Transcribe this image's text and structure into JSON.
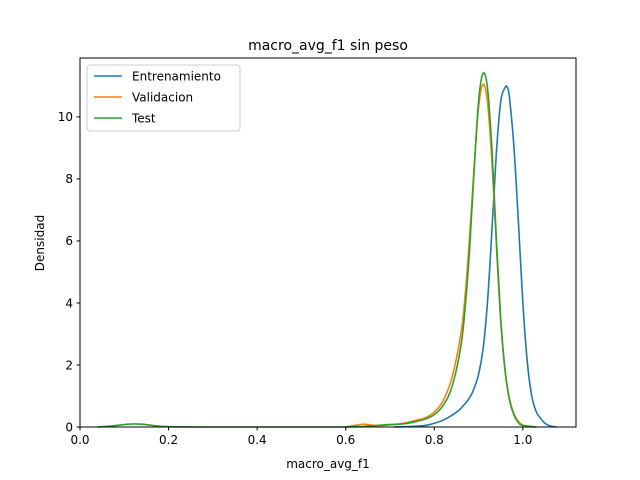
{
  "chart_data": {
    "type": "line",
    "title": "macro_avg_f1 sin peso",
    "xlabel": "macro_avg_f1",
    "ylabel": "Densidad",
    "xlim": [
      0.0,
      1.12
    ],
    "ylim": [
      0,
      11.9
    ],
    "xticks": [
      0.0,
      0.2,
      0.4,
      0.6,
      0.8,
      1.0
    ],
    "xtick_labels": [
      "0.0",
      "0.2",
      "0.4",
      "0.6",
      "0.8",
      "1.0"
    ],
    "yticks": [
      0,
      2,
      4,
      6,
      8,
      10
    ],
    "ytick_labels": [
      "0",
      "2",
      "4",
      "6",
      "8",
      "10"
    ],
    "grid": false,
    "legend": "upper left",
    "series": [
      {
        "name": "Entrenamiento",
        "color": "#1f77b4",
        "x": [
          0.71,
          0.75,
          0.78,
          0.8,
          0.82,
          0.84,
          0.86,
          0.88,
          0.89,
          0.9,
          0.91,
          0.92,
          0.93,
          0.94,
          0.95,
          0.96,
          0.965,
          0.97,
          0.98,
          0.99,
          1.0,
          1.01,
          1.02,
          1.03,
          1.04,
          1.05,
          1.06,
          1.075
        ],
        "y": [
          0.0,
          0.02,
          0.05,
          0.12,
          0.22,
          0.38,
          0.6,
          0.95,
          1.25,
          1.7,
          2.5,
          4.0,
          6.3,
          8.8,
          10.5,
          10.95,
          10.95,
          10.6,
          9.0,
          6.6,
          4.0,
          2.1,
          1.0,
          0.5,
          0.28,
          0.12,
          0.04,
          0.0
        ]
      },
      {
        "name": "Validacion",
        "color": "#ff7f0e",
        "x": [
          0.6,
          0.62,
          0.64,
          0.66,
          0.68,
          0.7,
          0.72,
          0.74,
          0.76,
          0.78,
          0.8,
          0.82,
          0.84,
          0.86,
          0.87,
          0.88,
          0.89,
          0.9,
          0.91,
          0.92,
          0.93,
          0.94,
          0.95,
          0.96,
          0.97,
          0.98,
          0.99,
          1.0,
          1.02
        ],
        "y": [
          0.0,
          0.05,
          0.09,
          0.06,
          0.05,
          0.07,
          0.1,
          0.15,
          0.22,
          0.3,
          0.48,
          0.85,
          1.6,
          3.0,
          4.3,
          6.2,
          8.4,
          10.3,
          11.05,
          10.5,
          8.6,
          5.9,
          3.4,
          1.8,
          0.9,
          0.42,
          0.18,
          0.06,
          0.0
        ]
      },
      {
        "name": "Test",
        "color": "#2ca02c",
        "x": [
          0.04,
          0.07,
          0.1,
          0.12,
          0.14,
          0.17,
          0.2,
          0.3,
          0.4,
          0.5,
          0.6,
          0.64,
          0.68,
          0.7,
          0.72,
          0.74,
          0.76,
          0.78,
          0.8,
          0.82,
          0.84,
          0.86,
          0.87,
          0.88,
          0.89,
          0.9,
          0.91,
          0.92,
          0.93,
          0.94,
          0.95,
          0.96,
          0.97,
          0.98,
          0.99,
          1.0,
          1.03
        ],
        "y": [
          0.0,
          0.03,
          0.08,
          0.1,
          0.09,
          0.04,
          0.01,
          0.0,
          0.0,
          0.0,
          0.0,
          0.02,
          0.06,
          0.08,
          0.09,
          0.12,
          0.18,
          0.26,
          0.4,
          0.7,
          1.3,
          2.6,
          3.9,
          5.8,
          8.3,
          10.5,
          11.4,
          10.95,
          9.0,
          6.1,
          3.5,
          1.8,
          0.85,
          0.38,
          0.14,
          0.05,
          0.0
        ]
      }
    ]
  }
}
